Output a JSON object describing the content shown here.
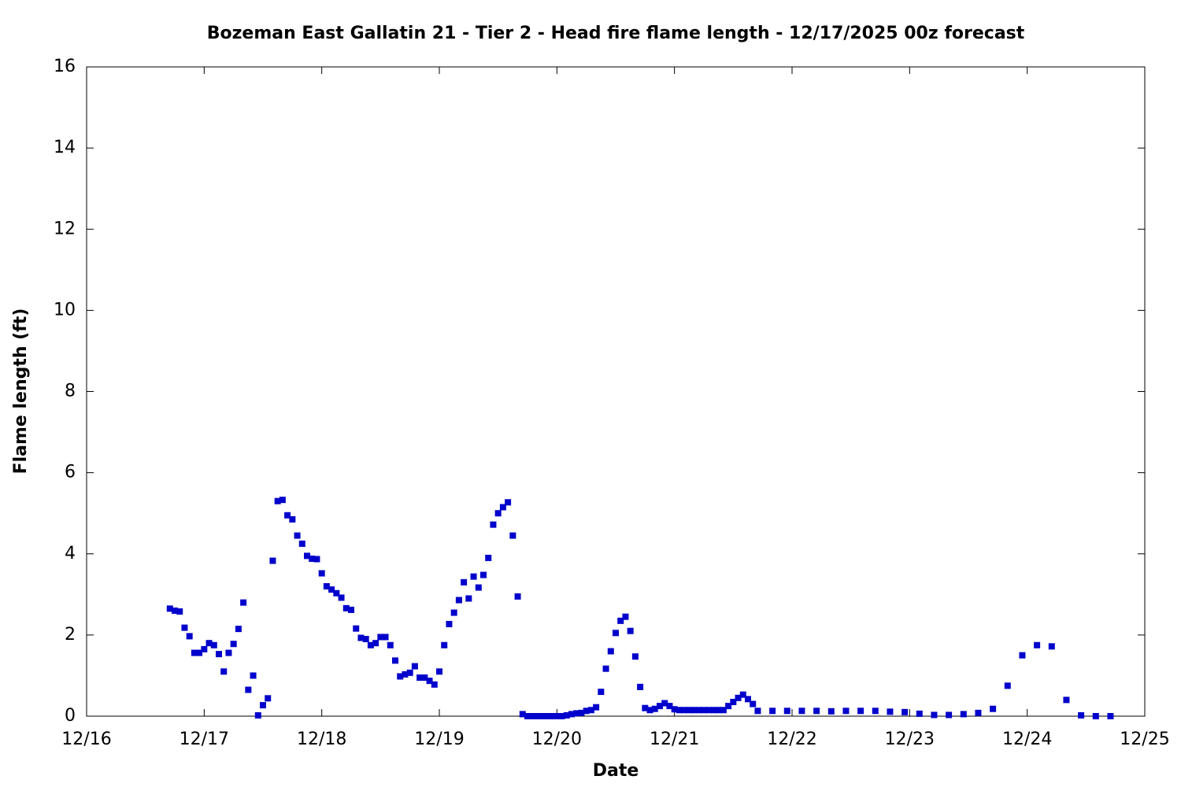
{
  "chart_data": {
    "type": "scatter",
    "title": "Bozeman East Gallatin 21 - Tier 2 - Head fire flame length - 12/17/2025 00z forecast",
    "x_label": "Date",
    "y_label": "Flame length (ft)",
    "xlim": [
      0,
      216
    ],
    "xticks": [
      {
        "value": 0,
        "label": "12/16"
      },
      {
        "value": 24,
        "label": "12/17"
      },
      {
        "value": 48,
        "label": "12/18"
      },
      {
        "value": 72,
        "label": "12/19"
      },
      {
        "value": 96,
        "label": "12/20"
      },
      {
        "value": 120,
        "label": "12/21"
      },
      {
        "value": 144,
        "label": "12/22"
      },
      {
        "value": 168,
        "label": "12/23"
      },
      {
        "value": 192,
        "label": "12/24"
      },
      {
        "value": 216,
        "label": "12/25"
      }
    ],
    "ylim": [
      0,
      16
    ],
    "yticks": [
      0,
      2,
      4,
      6,
      8,
      10,
      12,
      14,
      16
    ],
    "series": [
      {
        "color": "#0000cc",
        "x": [
          17,
          18,
          19,
          20,
          21,
          22,
          23,
          24,
          25,
          26,
          27,
          28,
          29,
          30,
          31,
          32,
          33,
          34,
          35,
          36,
          37,
          38,
          39,
          40,
          41,
          42,
          43,
          44,
          45,
          46,
          47,
          48,
          49,
          50,
          51,
          52,
          53,
          54,
          55,
          56,
          57,
          58,
          59,
          60,
          61,
          62,
          63,
          64,
          65,
          66,
          67,
          68,
          69,
          70,
          71,
          72,
          73,
          74,
          75,
          76,
          77,
          78,
          79,
          80,
          81,
          82,
          83,
          84,
          85,
          86,
          87,
          88,
          89,
          90,
          91,
          92,
          93,
          94,
          95,
          96,
          97,
          98,
          99,
          100,
          101,
          102,
          103,
          104,
          105,
          106,
          107,
          108,
          109,
          110,
          111,
          112,
          113,
          114,
          115,
          116,
          117,
          118,
          119,
          120,
          121,
          122,
          123,
          124,
          125,
          126,
          127,
          128,
          129,
          130,
          131,
          132,
          133,
          134,
          135,
          136,
          137,
          140,
          143,
          146,
          149,
          152,
          155,
          158,
          161,
          164,
          167,
          170,
          173,
          176,
          179,
          182,
          185,
          188,
          191,
          194,
          197,
          200,
          203,
          206,
          209
        ],
        "values": [
          2.65,
          2.6,
          2.58,
          2.18,
          1.97,
          1.56,
          1.56,
          1.65,
          1.8,
          1.75,
          1.53,
          1.1,
          1.56,
          1.78,
          2.15,
          2.8,
          0.65,
          1.0,
          0.02,
          0.27,
          0.44,
          3.83,
          5.3,
          5.33,
          4.95,
          4.85,
          4.45,
          4.25,
          3.95,
          3.88,
          3.87,
          3.52,
          3.2,
          3.12,
          3.03,
          2.92,
          2.66,
          2.62,
          2.16,
          1.93,
          1.9,
          1.75,
          1.8,
          1.95,
          1.95,
          1.75,
          1.37,
          0.98,
          1.03,
          1.07,
          1.23,
          0.95,
          0.95,
          0.87,
          0.78,
          1.1,
          1.75,
          2.27,
          2.55,
          2.86,
          3.3,
          2.9,
          3.44,
          3.17,
          3.48,
          3.9,
          4.72,
          5.0,
          5.15,
          5.27,
          4.45,
          2.95,
          0.05,
          0,
          0,
          0,
          0,
          0,
          0,
          0,
          0,
          0.02,
          0.05,
          0.07,
          0.08,
          0.13,
          0.15,
          0.22,
          0.6,
          1.17,
          1.6,
          2.05,
          2.35,
          2.45,
          2.1,
          1.47,
          0.72,
          0.2,
          0.15,
          0.18,
          0.25,
          0.32,
          0.25,
          0.17,
          0.15,
          0.15,
          0.15,
          0.15,
          0.15,
          0.15,
          0.15,
          0.15,
          0.15,
          0.15,
          0.25,
          0.35,
          0.45,
          0.53,
          0.42,
          0.3,
          0.13,
          0.13,
          0.13,
          0.13,
          0.13,
          0.12,
          0.13,
          0.13,
          0.13,
          0.11,
          0.1,
          0.06,
          0.03,
          0.03,
          0.05,
          0.08,
          0.18,
          0.75,
          1.5,
          1.75,
          1.72,
          0.4,
          0.02,
          0,
          0
        ]
      }
    ]
  }
}
